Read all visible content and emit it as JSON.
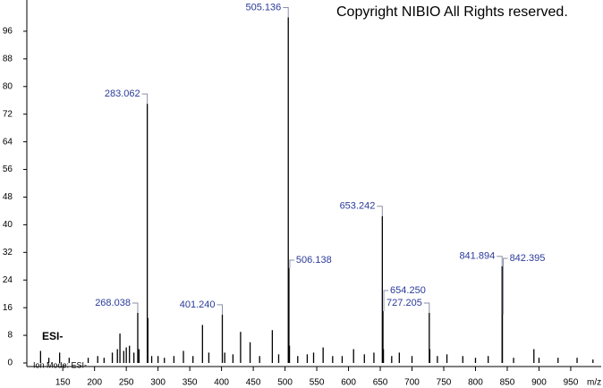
{
  "chart_data": {
    "type": "spectrum",
    "title": "Copyright NIBIO All Rights reserved.",
    "ion_mode": "Ion Mode: ESI-",
    "mode_label": "ESI-",
    "x_label": "m/z",
    "xlim": [
      99,
      998
    ],
    "ylim": [
      0,
      104
    ],
    "xticks": [
      150,
      200,
      250,
      300,
      350,
      400,
      450,
      500,
      550,
      600,
      650,
      700,
      750,
      800,
      850,
      900,
      950
    ],
    "yticks": [
      0,
      8,
      16,
      24,
      32,
      40,
      48,
      56,
      64,
      72,
      80,
      88,
      96
    ],
    "color": "#000000",
    "label_color": "#2a3a9a",
    "x": [
      115,
      128,
      145,
      160,
      190,
      205,
      215,
      228,
      236,
      240,
      246,
      250,
      255,
      262,
      268.038,
      270,
      283.062,
      284,
      290,
      300,
      310,
      325,
      340,
      355,
      370,
      380,
      401.24,
      405,
      418,
      430,
      445,
      460,
      480,
      490,
      505.136,
      506.138,
      507,
      520,
      535,
      545,
      560,
      575,
      590,
      608,
      625,
      640,
      653.242,
      654.25,
      655,
      668,
      680,
      700,
      727.205,
      728,
      740,
      755,
      780,
      800,
      820,
      841.894,
      842.395,
      860,
      892,
      900,
      930,
      960,
      985
    ],
    "values": [
      3.5,
      1.5,
      3,
      1.5,
      1.5,
      2,
      1.5,
      3,
      4,
      8.5,
      3.5,
      4.5,
      5,
      3,
      14.5,
      4,
      75,
      13,
      2,
      2,
      1.5,
      2,
      3.5,
      2,
      11,
      3,
      14,
      3,
      2.5,
      9,
      6,
      2,
      9.5,
      2.5,
      100,
      27.5,
      5,
      2,
      2.5,
      3,
      4.5,
      2,
      2,
      4,
      2.5,
      3,
      42.5,
      15,
      4,
      2,
      3,
      2,
      14.5,
      4,
      2,
      2.5,
      2,
      1.5,
      2,
      28,
      14,
      1.5,
      4,
      1.5,
      1.5,
      1.5,
      1
    ],
    "peak_labels": [
      null,
      null,
      null,
      null,
      null,
      null,
      null,
      null,
      null,
      null,
      null,
      null,
      null,
      null,
      "268.038",
      null,
      "283.062",
      null,
      null,
      null,
      null,
      null,
      null,
      null,
      null,
      null,
      "401.240",
      null,
      null,
      null,
      null,
      null,
      null,
      null,
      "505.136",
      "506.138",
      null,
      null,
      null,
      null,
      null,
      null,
      null,
      null,
      null,
      null,
      "653.242",
      "654.250",
      null,
      null,
      null,
      null,
      "727.205",
      null,
      null,
      null,
      null,
      null,
      null,
      "841.894",
      "842.395",
      null,
      null,
      null,
      null,
      null,
      null
    ]
  }
}
